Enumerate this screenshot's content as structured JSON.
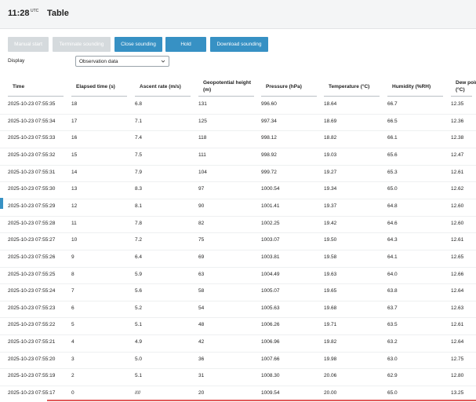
{
  "header": {
    "time": "11:28",
    "timezone": "UTC",
    "title": "Table"
  },
  "buttons": [
    {
      "label": "Manual start",
      "enabled": false
    },
    {
      "label": "Terminate sounding",
      "enabled": false
    },
    {
      "label": "Close sounding",
      "enabled": true
    },
    {
      "label": "Hold",
      "enabled": true
    },
    {
      "label": "Download sounding",
      "enabled": true
    }
  ],
  "display": {
    "label": "Display",
    "value": "Observation data"
  },
  "table": {
    "columns": [
      "Time",
      "Elapsed time (s)",
      "Ascent rate (m/s)",
      "Geopotential height (m)",
      "Pressure (hPa)",
      "Temperature (°C)",
      "Humidity (%RH)",
      "Dew point (°C)"
    ],
    "rows": [
      [
        "2025-10-23 07:55:35",
        "18",
        "6.8",
        "131",
        "996.60",
        "18.64",
        "66.7",
        "12.35"
      ],
      [
        "2025-10-23 07:55:34",
        "17",
        "7.1",
        "125",
        "997.34",
        "18.69",
        "66.5",
        "12.36"
      ],
      [
        "2025-10-23 07:55:33",
        "16",
        "7.4",
        "118",
        "998.12",
        "18.82",
        "66.1",
        "12.38"
      ],
      [
        "2025-10-23 07:55:32",
        "15",
        "7.5",
        "111",
        "998.92",
        "19.03",
        "65.6",
        "12.47"
      ],
      [
        "2025-10-23 07:55:31",
        "14",
        "7.9",
        "104",
        "999.72",
        "19.27",
        "65.3",
        "12.61"
      ],
      [
        "2025-10-23 07:55:30",
        "13",
        "8.3",
        "97",
        "1000.54",
        "19.34",
        "65.0",
        "12.62"
      ],
      [
        "2025-10-23 07:55:29",
        "12",
        "8.1",
        "90",
        "1001.41",
        "19.37",
        "64.8",
        "12.60"
      ],
      [
        "2025-10-23 07:55:28",
        "11",
        "7.8",
        "82",
        "1002.25",
        "19.42",
        "64.6",
        "12.60"
      ],
      [
        "2025-10-23 07:55:27",
        "10",
        "7.2",
        "75",
        "1003.07",
        "19.50",
        "64.3",
        "12.61"
      ],
      [
        "2025-10-23 07:55:26",
        "9",
        "6.4",
        "69",
        "1003.81",
        "19.58",
        "64.1",
        "12.65"
      ],
      [
        "2025-10-23 07:55:25",
        "8",
        "5.9",
        "63",
        "1004.49",
        "19.63",
        "64.0",
        "12.66"
      ],
      [
        "2025-10-23 07:55:24",
        "7",
        "5.6",
        "58",
        "1005.07",
        "19.65",
        "63.8",
        "12.64"
      ],
      [
        "2025-10-23 07:55:23",
        "6",
        "5.2",
        "54",
        "1005.63",
        "19.68",
        "63.7",
        "12.63"
      ],
      [
        "2025-10-23 07:55:22",
        "5",
        "5.1",
        "48",
        "1006.26",
        "19.71",
        "63.5",
        "12.61"
      ],
      [
        "2025-10-23 07:55:21",
        "4",
        "4.9",
        "42",
        "1006.96",
        "19.82",
        "63.2",
        "12.64"
      ],
      [
        "2025-10-23 07:55:20",
        "3",
        "5.0",
        "36",
        "1007.66",
        "19.98",
        "63.0",
        "12.75"
      ],
      [
        "2025-10-23 07:55:19",
        "2",
        "5.1",
        "31",
        "1008.30",
        "20.06",
        "62.9",
        "12.80"
      ],
      [
        "2025-10-23 07:55:17",
        "0",
        "////",
        "20",
        "1009.54",
        "20.00",
        "65.0",
        "13.25"
      ]
    ]
  }
}
